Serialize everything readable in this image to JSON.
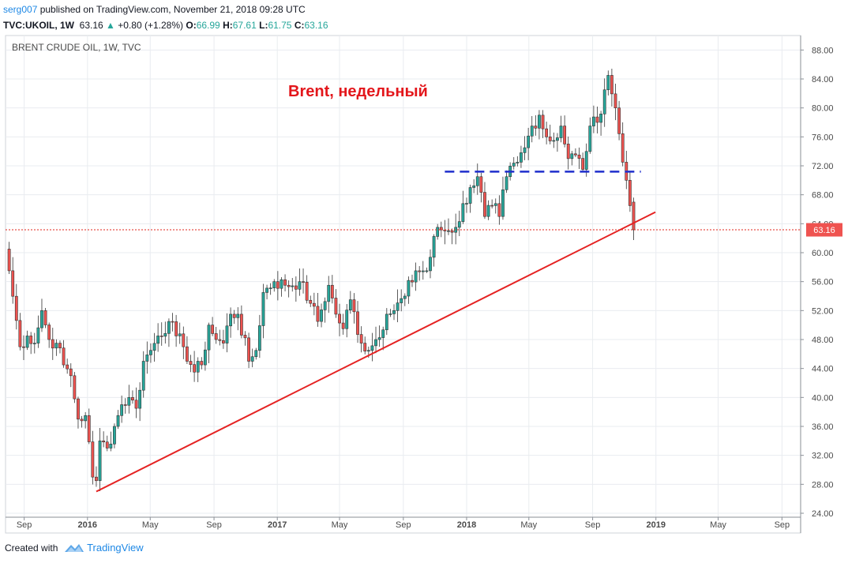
{
  "header": {
    "author": "serg007",
    "published_text": " published on TradingView.com, November 21, 2018 09:28 UTC",
    "symbol": "TVC:UKOIL, 1W",
    "last": "63.16",
    "change": "+0.80 (+1.28%)",
    "open_label": "O:",
    "open": "66.99",
    "high_label": "H:",
    "high": "67.61",
    "low_label": "L:",
    "low": "61.75",
    "close_label": "C:",
    "close": "63.16"
  },
  "pane_title": "BRENT CRUDE OIL, 1W, TVC",
  "annotation_text": "Brent, недельный",
  "price_label": "63.16",
  "footer": {
    "created_with": "Created with",
    "brand": "TradingView"
  },
  "colors": {
    "up": "#26a69a",
    "down": "#ef5350",
    "trendline": "#e52222",
    "support_line": "#1f2ecc",
    "price_line": "#e0241b",
    "grid": "#e9ecf0"
  },
  "chart_data": {
    "type": "candlestick",
    "title": "BRENT CRUDE OIL, 1W, TVC",
    "yaxis": {
      "ticks": [
        24,
        28,
        32,
        36,
        40,
        44,
        48,
        52,
        56,
        60,
        64,
        68,
        72,
        76,
        80,
        84,
        88
      ],
      "range": [
        24,
        90
      ],
      "scale": "linear"
    },
    "xaxis": {
      "tick_labels": [
        {
          "date": "2015-09-01",
          "label": "Sep"
        },
        {
          "date": "2016-01-01",
          "label": "2016"
        },
        {
          "date": "2016-05-01",
          "label": "May"
        },
        {
          "date": "2016-09-01",
          "label": "Sep"
        },
        {
          "date": "2017-01-01",
          "label": "2017"
        },
        {
          "date": "2017-05-01",
          "label": "May"
        },
        {
          "date": "2017-09-01",
          "label": "Sep"
        },
        {
          "date": "2018-01-01",
          "label": "2018"
        },
        {
          "date": "2018-05-01",
          "label": "May"
        },
        {
          "date": "2018-09-01",
          "label": "Sep"
        },
        {
          "date": "2019-01-01",
          "label": "2019"
        },
        {
          "date": "2019-05-01",
          "label": "May"
        },
        {
          "date": "2019-09-01",
          "label": "Sep"
        }
      ],
      "range": [
        "2015-07-27",
        "2019-10-07"
      ]
    },
    "grid": true,
    "last_price": 63.16,
    "support_level": 71.2,
    "support_range": [
      "2017-11-20",
      "2018-12-03"
    ],
    "trendline": {
      "start": [
        "2016-01-18",
        27.0
      ],
      "end": [
        "2018-12-31",
        65.6
      ]
    },
    "anchors": [
      [
        "2015-07-27",
        60.5
      ],
      [
        "2015-08-03",
        57.5
      ],
      [
        "2015-08-24",
        47.0
      ],
      [
        "2015-09-07",
        48.5
      ],
      [
        "2015-09-21",
        47.5
      ],
      [
        "2015-10-05",
        52.0
      ],
      [
        "2015-10-19",
        48.0
      ],
      [
        "2015-11-02",
        47.5
      ],
      [
        "2015-11-16",
        44.5
      ],
      [
        "2015-11-30",
        43.0
      ],
      [
        "2015-12-14",
        37.0
      ],
      [
        "2015-12-28",
        37.5
      ],
      [
        "2016-01-11",
        29.0
      ],
      [
        "2016-01-18",
        28.5
      ],
      [
        "2016-01-25",
        34.0
      ],
      [
        "2016-02-08",
        33.0
      ],
      [
        "2016-02-22",
        36.0
      ],
      [
        "2016-03-07",
        39.0
      ],
      [
        "2016-03-21",
        40.0
      ],
      [
        "2016-04-04",
        38.5
      ],
      [
        "2016-04-18",
        45.0
      ],
      [
        "2016-05-02",
        46.5
      ],
      [
        "2016-05-16",
        48.5
      ],
      [
        "2016-06-06",
        50.5
      ],
      [
        "2016-06-20",
        48.5
      ],
      [
        "2016-07-04",
        47.0
      ],
      [
        "2016-07-25",
        43.5
      ],
      [
        "2016-08-08",
        44.5
      ],
      [
        "2016-08-22",
        50.0
      ],
      [
        "2016-09-05",
        48.0
      ],
      [
        "2016-09-19",
        47.5
      ],
      [
        "2016-10-03",
        51.5
      ],
      [
        "2016-10-17",
        51.5
      ],
      [
        "2016-11-07",
        45.0
      ],
      [
        "2016-11-21",
        46.5
      ],
      [
        "2016-12-05",
        54.5
      ],
      [
        "2016-12-26",
        56.0
      ],
      [
        "2017-01-16",
        55.5
      ],
      [
        "2017-02-13",
        56.0
      ],
      [
        "2017-03-06",
        53.0
      ],
      [
        "2017-03-20",
        50.5
      ],
      [
        "2017-04-10",
        55.5
      ],
      [
        "2017-04-24",
        51.5
      ],
      [
        "2017-05-08",
        49.5
      ],
      [
        "2017-05-22",
        53.5
      ],
      [
        "2017-06-12",
        47.5
      ],
      [
        "2017-06-26",
        46.5
      ],
      [
        "2017-07-10",
        48.0
      ],
      [
        "2017-07-31",
        51.5
      ],
      [
        "2017-08-14",
        52.0
      ],
      [
        "2017-09-04",
        54.0
      ],
      [
        "2017-09-25",
        57.5
      ],
      [
        "2017-10-16",
        57.5
      ],
      [
        "2017-11-06",
        63.5
      ],
      [
        "2017-11-20",
        63.0
      ],
      [
        "2017-12-11",
        63.5
      ],
      [
        "2018-01-08",
        69.0
      ],
      [
        "2018-01-22",
        70.5
      ],
      [
        "2018-02-05",
        65.0
      ],
      [
        "2018-02-19",
        66.5
      ],
      [
        "2018-03-05",
        65.0
      ],
      [
        "2018-03-19",
        70.5
      ],
      [
        "2018-04-09",
        72.5
      ],
      [
        "2018-04-23",
        74.5
      ],
      [
        "2018-05-07",
        77.5
      ],
      [
        "2018-05-21",
        79.0
      ],
      [
        "2018-06-04",
        76.0
      ],
      [
        "2018-06-18",
        75.5
      ],
      [
        "2018-07-02",
        77.5
      ],
      [
        "2018-07-16",
        73.0
      ],
      [
        "2018-07-30",
        73.5
      ],
      [
        "2018-08-13",
        71.5
      ],
      [
        "2018-08-27",
        77.5
      ],
      [
        "2018-09-10",
        78.0
      ],
      [
        "2018-09-24",
        82.5
      ],
      [
        "2018-10-01",
        84.5
      ],
      [
        "2018-10-15",
        80.0
      ],
      [
        "2018-10-29",
        72.5
      ],
      [
        "2018-11-05",
        70.0
      ],
      [
        "2018-11-12",
        66.5
      ],
      [
        "2018-11-19",
        63.16
      ]
    ]
  }
}
